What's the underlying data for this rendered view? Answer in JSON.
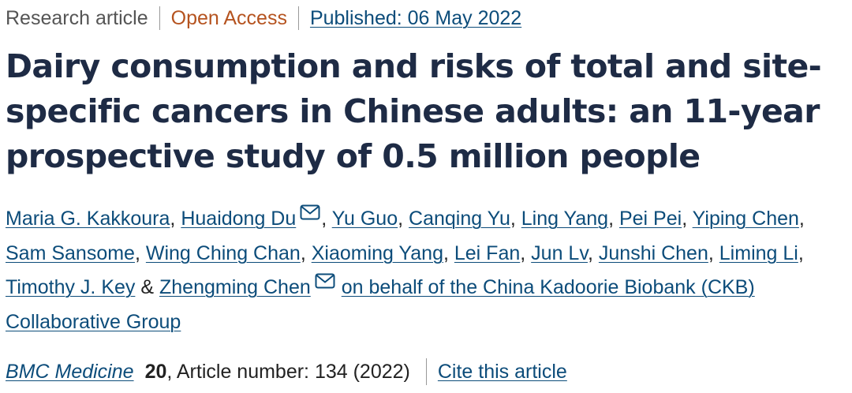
{
  "meta": {
    "article_type": "Research article",
    "access": "Open Access",
    "published": "Published: 06 May 2022"
  },
  "title": "Dairy consumption and risks of total and site-specific cancers in Chinese adults: an 11-year prospective study of 0.5 million people",
  "authors": [
    {
      "name": "Maria G. Kakkoura",
      "sep": ", "
    },
    {
      "name": "Huaidong Du",
      "mail": true,
      "sep": ", "
    },
    {
      "name": "Yu Guo",
      "sep": ", "
    },
    {
      "name": "Canqing Yu",
      "sep": ", "
    },
    {
      "name": "Ling Yang",
      "sep": ", "
    },
    {
      "name": "Pei Pei",
      "sep": ", "
    },
    {
      "name": "Yiping Chen",
      "sep": ", "
    },
    {
      "name": "Sam Sansome",
      "sep": ", "
    },
    {
      "name": "Wing Ching Chan",
      "sep": ", "
    },
    {
      "name": "Xiaoming Yang",
      "sep": ", "
    },
    {
      "name": "Lei Fan",
      "sep": ", "
    },
    {
      "name": "Jun Lv",
      "sep": ", "
    },
    {
      "name": "Junshi Chen",
      "sep": ", "
    },
    {
      "name": "Liming Li",
      "sep": ", "
    },
    {
      "name": "Timothy J. Key",
      "sep": " & "
    },
    {
      "name": "Zhengming Chen",
      "mail": true,
      "sep": " "
    }
  ],
  "group": "on behalf of the China Kadoorie Biobank (CKB) Collaborative Group",
  "citation": {
    "journal": "BMC Medicine",
    "volume": "20",
    "article_number": ", Article number: 134 (2022)",
    "cite_label": "Cite this article"
  },
  "icons": {
    "mail": "mail-icon"
  },
  "colors": {
    "title": "#1e2b45",
    "link": "#0c4c7a",
    "open_access": "#b5531f",
    "text": "#222222"
  }
}
